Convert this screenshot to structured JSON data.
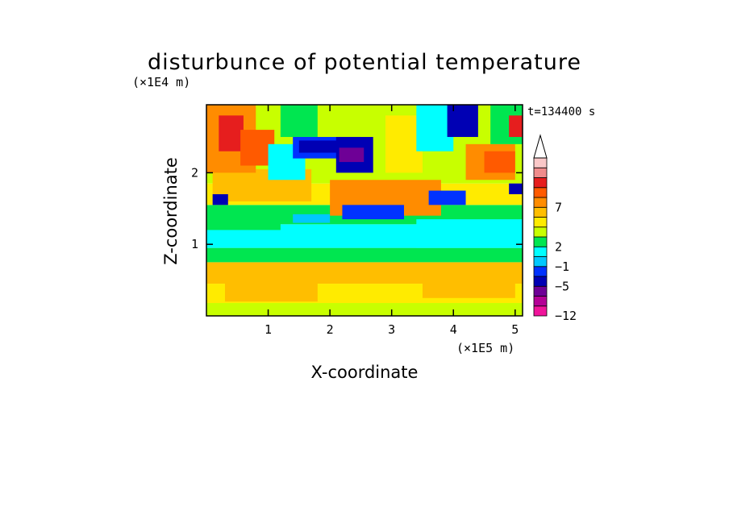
{
  "chart_data": {
    "type": "heatmap",
    "title": "disturbunce of potential temperature",
    "xlabel": "X-coordinate",
    "ylabel": "Z-coordinate",
    "x_unit": "(×1E5 m)",
    "y_unit": "(×1E4 m)",
    "time_label": "t=134400 s",
    "xlim": [
      0,
      5.12
    ],
    "ylim": [
      0,
      2.95
    ],
    "x_ticks": [
      1,
      2,
      3,
      4,
      5
    ],
    "x_tick_labels": [
      "1",
      "2",
      "3",
      "4",
      "5"
    ],
    "y_ticks": [
      1,
      2
    ],
    "y_tick_labels": [
      "1",
      "2"
    ],
    "colorbar": {
      "colors": [
        "#f0149b",
        "#b40096",
        "#6e0096",
        "#0000b4",
        "#0032ff",
        "#00c8ff",
        "#00ffff",
        "#00e650",
        "#c8ff00",
        "#ffeb00",
        "#ffbe00",
        "#ff8c00",
        "#ff5a00",
        "#e61e1e",
        "#f08c8c",
        "#fac8c8"
      ],
      "extend_top": true,
      "tick_labels": [
        "7",
        "2",
        "−1",
        "−5",
        "−12"
      ],
      "tick_levels": [
        11,
        7,
        5,
        3,
        0
      ]
    },
    "regions": [
      {
        "x0": 0,
        "x1": 5.12,
        "y0": 0,
        "y1": 0.18,
        "c": 8
      },
      {
        "x0": 0,
        "x1": 5.12,
        "y0": 0.18,
        "y1": 0.45,
        "c": 9
      },
      {
        "x0": 0,
        "x1": 5.12,
        "y0": 0.45,
        "y1": 0.75,
        "c": 10
      },
      {
        "x0": 0,
        "x1": 5.12,
        "y0": 0.75,
        "y1": 0.95,
        "c": 7
      },
      {
        "x0": 0,
        "x1": 5.12,
        "y0": 0.95,
        "y1": 1.28,
        "c": 6
      },
      {
        "x0": 0,
        "x1": 5.12,
        "y0": 1.28,
        "y1": 1.55,
        "c": 7
      },
      {
        "x0": 0,
        "x1": 5.12,
        "y0": 1.55,
        "y1": 1.85,
        "c": 9
      },
      {
        "x0": 0,
        "x1": 5.12,
        "y0": 1.85,
        "y1": 2.95,
        "c": 8
      },
      {
        "x0": 0.3,
        "x1": 1.8,
        "y0": 0.2,
        "y1": 0.7,
        "c": 10
      },
      {
        "x0": 3.5,
        "x1": 5.0,
        "y0": 0.25,
        "y1": 0.7,
        "c": 10
      },
      {
        "x0": 3.4,
        "x1": 5.12,
        "y0": 0.95,
        "y1": 1.35,
        "c": 6
      },
      {
        "x0": 0.0,
        "x1": 1.2,
        "y0": 1.2,
        "y1": 1.45,
        "c": 7
      },
      {
        "x0": 0.1,
        "x1": 1.7,
        "y0": 1.6,
        "y1": 2.05,
        "c": 10
      },
      {
        "x0": 2.0,
        "x1": 3.8,
        "y0": 1.4,
        "y1": 1.9,
        "c": 11
      },
      {
        "x0": 2.2,
        "x1": 3.2,
        "y0": 1.35,
        "y1": 1.55,
        "c": 4
      },
      {
        "x0": 0.0,
        "x1": 0.8,
        "y0": 2.0,
        "y1": 2.95,
        "c": 11
      },
      {
        "x0": 0.2,
        "x1": 0.6,
        "y0": 2.3,
        "y1": 2.8,
        "c": 13
      },
      {
        "x0": 0.55,
        "x1": 1.1,
        "y0": 2.1,
        "y1": 2.6,
        "c": 12
      },
      {
        "x0": 1.0,
        "x1": 1.6,
        "y0": 1.9,
        "y1": 2.4,
        "c": 6
      },
      {
        "x0": 1.2,
        "x1": 1.8,
        "y0": 2.5,
        "y1": 2.95,
        "c": 7
      },
      {
        "x0": 1.4,
        "x1": 2.5,
        "y0": 2.2,
        "y1": 2.5,
        "c": 4
      },
      {
        "x0": 1.5,
        "x1": 2.2,
        "y0": 2.28,
        "y1": 2.45,
        "c": 3
      },
      {
        "x0": 2.1,
        "x1": 2.7,
        "y0": 2.0,
        "y1": 2.5,
        "c": 3
      },
      {
        "x0": 2.15,
        "x1": 2.55,
        "y0": 2.15,
        "y1": 2.35,
        "c": 2
      },
      {
        "x0": 2.9,
        "x1": 3.5,
        "y0": 2.0,
        "y1": 2.8,
        "c": 9
      },
      {
        "x0": 3.4,
        "x1": 4.0,
        "y0": 2.3,
        "y1": 2.95,
        "c": 6
      },
      {
        "x0": 3.9,
        "x1": 4.4,
        "y0": 2.5,
        "y1": 2.95,
        "c": 3
      },
      {
        "x0": 4.2,
        "x1": 5.0,
        "y0": 1.9,
        "y1": 2.4,
        "c": 11
      },
      {
        "x0": 4.5,
        "x1": 5.0,
        "y0": 2.0,
        "y1": 2.3,
        "c": 12
      },
      {
        "x0": 4.6,
        "x1": 5.12,
        "y0": 2.4,
        "y1": 2.95,
        "c": 7
      },
      {
        "x0": 4.9,
        "x1": 5.12,
        "y0": 2.5,
        "y1": 2.8,
        "c": 13
      },
      {
        "x0": 0.1,
        "x1": 0.35,
        "y0": 1.55,
        "y1": 1.7,
        "c": 3
      },
      {
        "x0": 3.6,
        "x1": 4.2,
        "y0": 1.55,
        "y1": 1.75,
        "c": 4
      },
      {
        "x0": 4.9,
        "x1": 5.12,
        "y0": 1.7,
        "y1": 1.85,
        "c": 3
      },
      {
        "x0": 1.4,
        "x1": 2.0,
        "y0": 1.3,
        "y1": 1.42,
        "c": 5
      }
    ]
  }
}
